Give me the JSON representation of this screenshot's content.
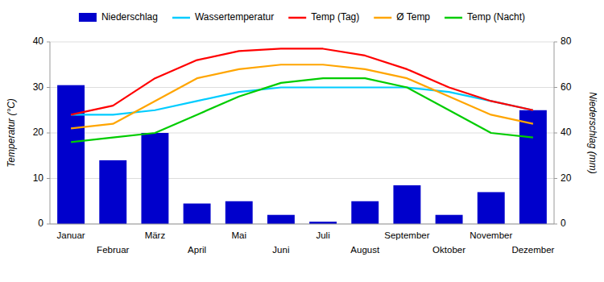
{
  "chart_data": {
    "type": "combo",
    "categories": [
      "Januar",
      "Februar",
      "März",
      "April",
      "Mai",
      "Juni",
      "Juli",
      "August",
      "September",
      "Oktober",
      "November",
      "Dezember"
    ],
    "series": [
      {
        "name": "Niederschlag",
        "type": "bar",
        "axis": "y2",
        "color": "#0000cc",
        "values": [
          61,
          28,
          40,
          9,
          10,
          4,
          1,
          10,
          17,
          4,
          14,
          50
        ]
      },
      {
        "name": "Wassertemperatur",
        "type": "line",
        "color": "#00ccff",
        "values": [
          24,
          24,
          25,
          27,
          29,
          30,
          30,
          30,
          30,
          29,
          27,
          25
        ]
      },
      {
        "name": "Temp (Tag)",
        "type": "line",
        "color": "#ff0000",
        "values": [
          24,
          26,
          32,
          36,
          38,
          38.5,
          38.5,
          37,
          34,
          30,
          27,
          25
        ]
      },
      {
        "name": "Ø Temp",
        "type": "line",
        "color": "#ffa500",
        "values": [
          21,
          22,
          27,
          32,
          34,
          35,
          35,
          34,
          32,
          28,
          24,
          22
        ]
      },
      {
        "name": "Temp (Nacht)",
        "type": "line",
        "color": "#00cc00",
        "values": [
          18,
          19,
          20,
          24,
          28,
          31,
          32,
          32,
          30,
          25,
          20,
          19
        ]
      }
    ],
    "ylabel": "Temperatur (°C)",
    "y2label": "Niederschlag (mm)",
    "ylim": [
      0,
      40
    ],
    "yticks": [
      0,
      10,
      20,
      30,
      40
    ],
    "y2lim": [
      0,
      80
    ],
    "y2ticks": [
      0,
      20,
      40,
      60,
      80
    ],
    "grid": true,
    "legend": "top"
  }
}
